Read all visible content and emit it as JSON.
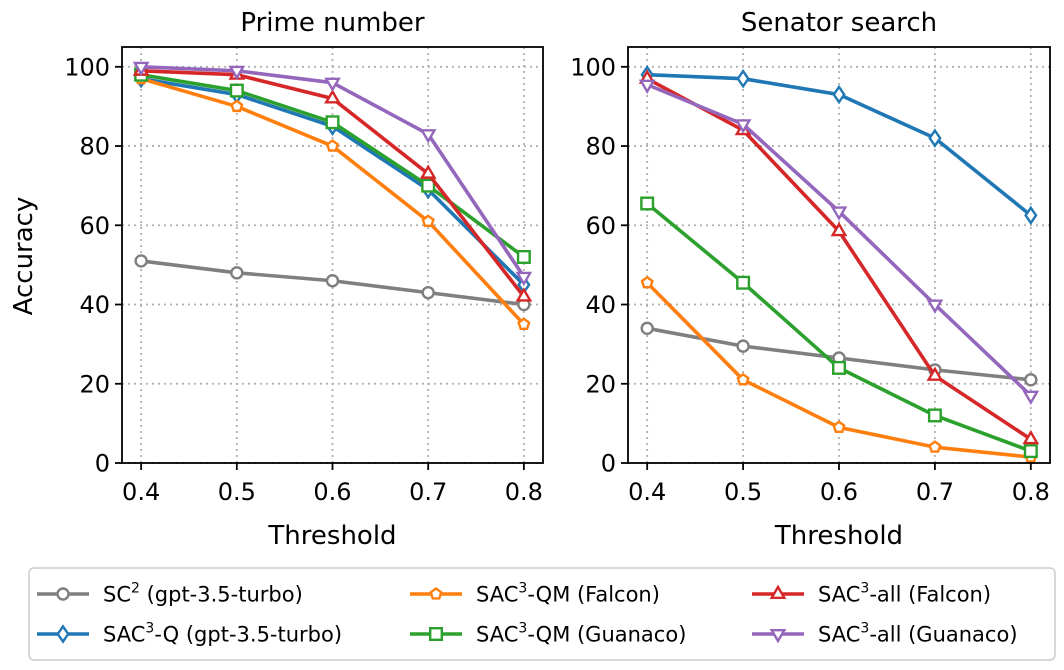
{
  "chart_data": [
    {
      "type": "line",
      "title": "Prime number",
      "xlabel": "Threshold",
      "ylabel": "Accuracy",
      "x": [
        0.4,
        0.5,
        0.6,
        0.7,
        0.8
      ],
      "x_tick_labels": [
        "0.4",
        "0.5",
        "0.6",
        "0.7",
        "0.8"
      ],
      "xlim": [
        0.38,
        0.82
      ],
      "ylim": [
        0,
        105
      ],
      "y_ticks": [
        0,
        20,
        40,
        60,
        80,
        100
      ],
      "y_tick_labels": [
        "0",
        "20",
        "40",
        "60",
        "80",
        "100"
      ],
      "grid": true,
      "series": [
        {
          "key": "sc2",
          "values": [
            51,
            48,
            46,
            43,
            40
          ]
        },
        {
          "key": "sac3q",
          "values": [
            97,
            93,
            85,
            69,
            45
          ]
        },
        {
          "key": "qm_falcon",
          "values": [
            97,
            90,
            80,
            61,
            35
          ]
        },
        {
          "key": "qm_guanaco",
          "values": [
            98,
            94,
            86,
            70,
            52
          ]
        },
        {
          "key": "all_falcon",
          "values": [
            99,
            98,
            92,
            73,
            42
          ]
        },
        {
          "key": "all_guanaco",
          "values": [
            100,
            99,
            96,
            83,
            47
          ]
        }
      ]
    },
    {
      "type": "line",
      "title": "Senator search",
      "xlabel": "Threshold",
      "ylabel": "",
      "x": [
        0.4,
        0.5,
        0.6,
        0.7,
        0.8
      ],
      "x_tick_labels": [
        "0.4",
        "0.5",
        "0.6",
        "0.7",
        "0.8"
      ],
      "xlim": [
        0.38,
        0.82
      ],
      "ylim": [
        0,
        105
      ],
      "y_ticks": [
        0,
        20,
        40,
        60,
        80,
        100
      ],
      "y_tick_labels": [
        "0",
        "20",
        "40",
        "60",
        "80",
        "100"
      ],
      "grid": true,
      "series": [
        {
          "key": "sc2",
          "values": [
            34,
            29.5,
            26.5,
            23.5,
            21
          ]
        },
        {
          "key": "sac3q",
          "values": [
            98,
            97,
            93,
            82,
            62.5
          ]
        },
        {
          "key": "qm_falcon",
          "values": [
            45.5,
            21,
            9,
            4,
            1.5
          ]
        },
        {
          "key": "qm_guanaco",
          "values": [
            65.5,
            45.5,
            24,
            12,
            3
          ]
        },
        {
          "key": "all_falcon",
          "values": [
            97,
            84,
            58.5,
            22,
            6
          ]
        },
        {
          "key": "all_guanaco",
          "values": [
            95.5,
            85.5,
            63.5,
            40,
            17
          ]
        }
      ]
    }
  ],
  "legend": {
    "placement": "bottom",
    "entries": [
      {
        "key": "sc2",
        "pre": "SC",
        "sup": "2",
        "post": " (gpt-3.5-turbo)",
        "color": "#7f7f7f",
        "marker": "circle"
      },
      {
        "key": "sac3q",
        "pre": "SAC",
        "sup": "3",
        "post": "-Q (gpt-3.5-turbo)",
        "color": "#1f77b4",
        "marker": "diamond"
      },
      {
        "key": "qm_falcon",
        "pre": "SAC",
        "sup": "3",
        "post": "-QM (Falcon)",
        "color": "#ff7f0e",
        "marker": "pentagon"
      },
      {
        "key": "qm_guanaco",
        "pre": "SAC",
        "sup": "3",
        "post": "-QM (Guanaco)",
        "color": "#2ca02c",
        "marker": "square"
      },
      {
        "key": "all_falcon",
        "pre": "SAC",
        "sup": "3",
        "post": "-all (Falcon)",
        "color": "#d62728",
        "marker": "triangle-up"
      },
      {
        "key": "all_guanaco",
        "pre": "SAC",
        "sup": "3",
        "post": "-all (Guanaco)",
        "color": "#9467bd",
        "marker": "triangle-down"
      }
    ]
  }
}
